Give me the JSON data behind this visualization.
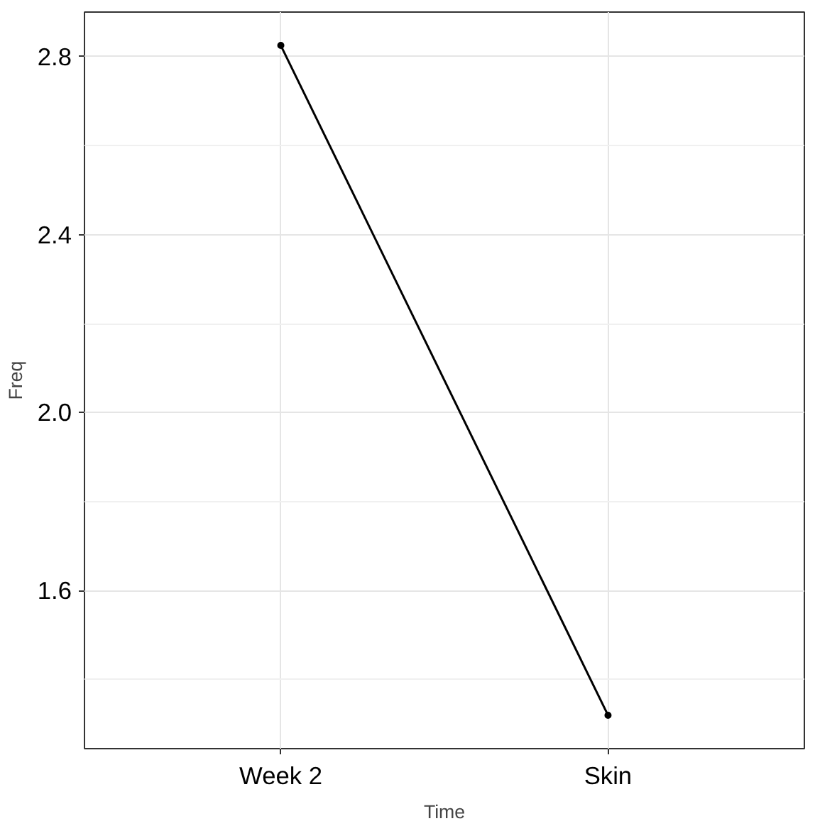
{
  "chart_data": {
    "type": "line",
    "xlabel": "Time",
    "ylabel": "Freq",
    "categories": [
      "Week 2",
      "Skin"
    ],
    "series": [
      {
        "color": "#000000",
        "values": [
          2.825,
          1.32
        ]
      }
    ],
    "ylim": [
      1.245,
      2.9
    ],
    "yticks": [
      {
        "value": 1.4,
        "label": null
      },
      1.6,
      {
        "value": 1.8,
        "label": null
      },
      {
        "value": 2.0,
        "label": "2.0"
      },
      {
        "value": 2.2,
        "label": null
      },
      2.4,
      {
        "value": 2.6,
        "label": null
      },
      2.8
    ],
    "grid": true,
    "marker": "circle",
    "line_style": "solid"
  }
}
